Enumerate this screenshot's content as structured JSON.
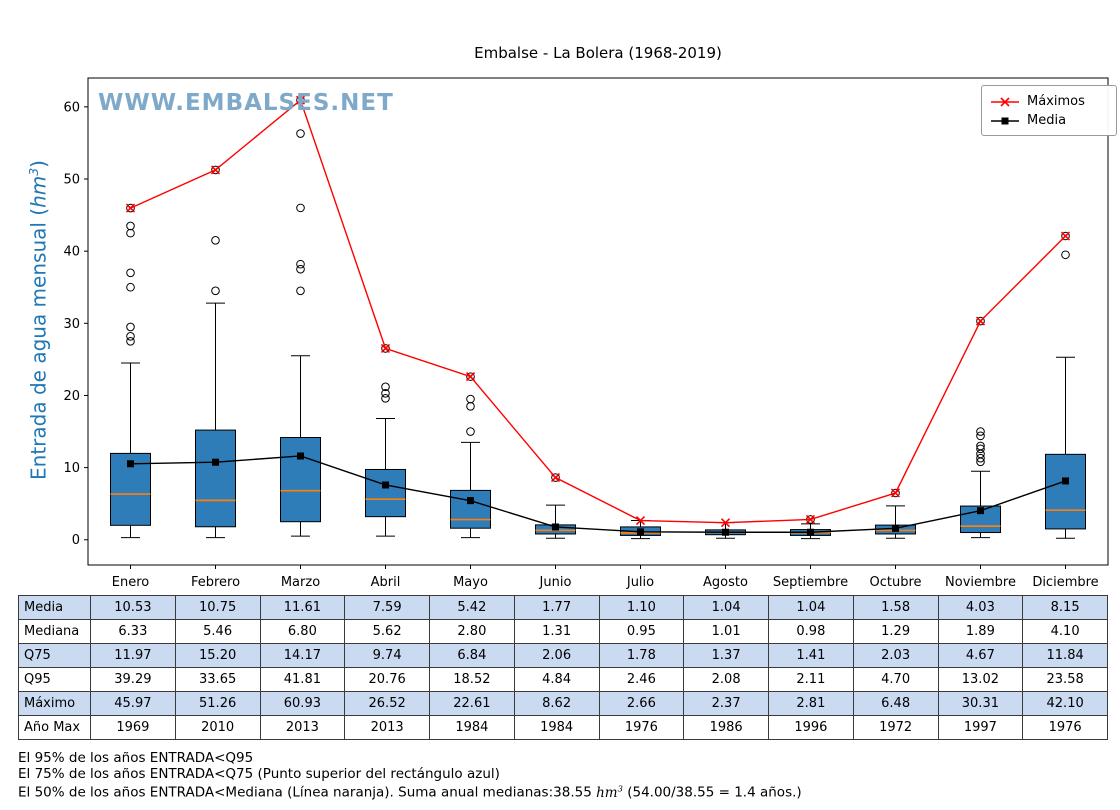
{
  "title": "Embalse - La Bolera (1968-2019)",
  "watermark": "WWW.EMBALSES.NET",
  "ylabel": {
    "pre": "Entrada de agua mensual (",
    "unit": "hm",
    "sup": "3",
    "post": ")"
  },
  "legend": {
    "maximos": "Máximos",
    "media": "Media"
  },
  "months": [
    "Enero",
    "Febrero",
    "Marzo",
    "Abril",
    "Mayo",
    "Junio",
    "Julio",
    "Agosto",
    "Septiembre",
    "Octubre",
    "Noviembre",
    "Diciembre"
  ],
  "chart_data": {
    "type": "box",
    "title": "Embalse - La Bolera (1968-2019)",
    "ylabel": "Entrada de agua mensual (hm³)",
    "ylim": [
      -3.5,
      64
    ],
    "yticks": [
      0,
      10,
      20,
      30,
      40,
      50,
      60
    ],
    "grid": false,
    "legend_position": "top-right",
    "categories": [
      "Enero",
      "Febrero",
      "Marzo",
      "Abril",
      "Mayo",
      "Junio",
      "Julio",
      "Agosto",
      "Septiembre",
      "Octubre",
      "Noviembre",
      "Diciembre"
    ],
    "colors": {
      "box_fill": "#2f7db8",
      "box_edge": "#000000",
      "median": "#ff7f0e",
      "maximos": "#ff0000",
      "media": "#000000",
      "watermark": "#7fa9c9",
      "ylabel": "#1f77b4",
      "table_alt_row": "#c9daf1"
    },
    "boxes": [
      {
        "whislo": 0.3,
        "q1": 2.0,
        "med": 6.33,
        "q3": 11.97,
        "whishi": 24.5,
        "outliers": [
          27.5,
          28.2,
          29.5,
          35.0,
          37.0,
          42.5,
          43.5,
          45.97
        ]
      },
      {
        "whislo": 0.3,
        "q1": 1.8,
        "med": 5.46,
        "q3": 15.2,
        "whishi": 32.8,
        "outliers": [
          34.5,
          41.5,
          51.26
        ]
      },
      {
        "whislo": 0.5,
        "q1": 2.5,
        "med": 6.8,
        "q3": 14.17,
        "whishi": 25.5,
        "outliers": [
          34.5,
          37.5,
          38.2,
          46.0,
          56.3,
          60.93
        ]
      },
      {
        "whislo": 0.5,
        "q1": 3.2,
        "med": 5.62,
        "q3": 9.74,
        "whishi": 16.8,
        "outliers": [
          19.6,
          20.3,
          21.2,
          26.52
        ]
      },
      {
        "whislo": 0.3,
        "q1": 1.6,
        "med": 2.8,
        "q3": 6.84,
        "whishi": 13.5,
        "outliers": [
          15.0,
          18.5,
          19.5,
          22.61
        ]
      },
      {
        "whislo": 0.2,
        "q1": 0.8,
        "med": 1.31,
        "q3": 2.06,
        "whishi": 4.8,
        "outliers": [
          8.62
        ]
      },
      {
        "whislo": 0.15,
        "q1": 0.6,
        "med": 0.95,
        "q3": 1.78,
        "whishi": 2.66,
        "outliers": []
      },
      {
        "whislo": 0.2,
        "q1": 0.7,
        "med": 1.01,
        "q3": 1.37,
        "whishi": 2.37,
        "outliers": []
      },
      {
        "whislo": 0.15,
        "q1": 0.6,
        "med": 0.98,
        "q3": 1.41,
        "whishi": 2.2,
        "outliers": [
          2.81
        ]
      },
      {
        "whislo": 0.2,
        "q1": 0.8,
        "med": 1.29,
        "q3": 2.03,
        "whishi": 4.7,
        "outliers": [
          6.48
        ]
      },
      {
        "whislo": 0.3,
        "q1": 1.0,
        "med": 1.89,
        "q3": 4.67,
        "whishi": 9.5,
        "outliers": [
          10.8,
          11.3,
          11.9,
          12.6,
          13.0,
          14.4,
          15.0,
          30.31
        ]
      },
      {
        "whislo": 0.2,
        "q1": 1.5,
        "med": 4.1,
        "q3": 11.84,
        "whishi": 25.3,
        "outliers": [
          39.5,
          42.1
        ]
      }
    ],
    "series": [
      {
        "name": "Máximos",
        "marker": "x",
        "color": "#ff0000",
        "values": [
          45.97,
          51.26,
          60.93,
          26.52,
          22.61,
          8.62,
          2.66,
          2.37,
          2.81,
          6.48,
          30.31,
          42.1
        ]
      },
      {
        "name": "Media",
        "marker": "square",
        "color": "#000000",
        "values": [
          10.53,
          10.75,
          11.61,
          7.59,
          5.42,
          1.77,
          1.1,
          1.04,
          1.04,
          1.58,
          4.03,
          8.15
        ]
      }
    ]
  },
  "table": {
    "rows": [
      {
        "label": "Media",
        "values": [
          "10.53",
          "10.75",
          "11.61",
          "7.59",
          "5.42",
          "1.77",
          "1.10",
          "1.04",
          "1.04",
          "1.58",
          "4.03",
          "8.15"
        ]
      },
      {
        "label": "Mediana",
        "values": [
          "6.33",
          "5.46",
          "6.80",
          "5.62",
          "2.80",
          "1.31",
          "0.95",
          "1.01",
          "0.98",
          "1.29",
          "1.89",
          "4.10"
        ]
      },
      {
        "label": "Q75",
        "values": [
          "11.97",
          "15.20",
          "14.17",
          "9.74",
          "6.84",
          "2.06",
          "1.78",
          "1.37",
          "1.41",
          "2.03",
          "4.67",
          "11.84"
        ]
      },
      {
        "label": "Q95",
        "values": [
          "39.29",
          "33.65",
          "41.81",
          "20.76",
          "18.52",
          "4.84",
          "2.46",
          "2.08",
          "2.11",
          "4.70",
          "13.02",
          "23.58"
        ]
      },
      {
        "label": "Máximo",
        "values": [
          "45.97",
          "51.26",
          "60.93",
          "26.52",
          "22.61",
          "8.62",
          "2.66",
          "2.37",
          "2.81",
          "6.48",
          "30.31",
          "42.10"
        ]
      },
      {
        "label": "Año Max",
        "values": [
          "1969",
          "2010",
          "2013",
          "2013",
          "1984",
          "1984",
          "1976",
          "1986",
          "1996",
          "1972",
          "1997",
          "1976"
        ]
      }
    ]
  },
  "footnotes": {
    "line1": "El 95% de los años ENTRADA<Q95",
    "line2": "El 75% de los años ENTRADA<Q75 (Punto superior del rectángulo azul)",
    "line3_pre": "El 50% de los años ENTRADA<Mediana (Línea naranja). Suma anual medianas:38.55 ",
    "line3_unit": "hm",
    "line3_sup": "3",
    "line3_post": " (54.00/38.55 = 1.4 años.)"
  }
}
